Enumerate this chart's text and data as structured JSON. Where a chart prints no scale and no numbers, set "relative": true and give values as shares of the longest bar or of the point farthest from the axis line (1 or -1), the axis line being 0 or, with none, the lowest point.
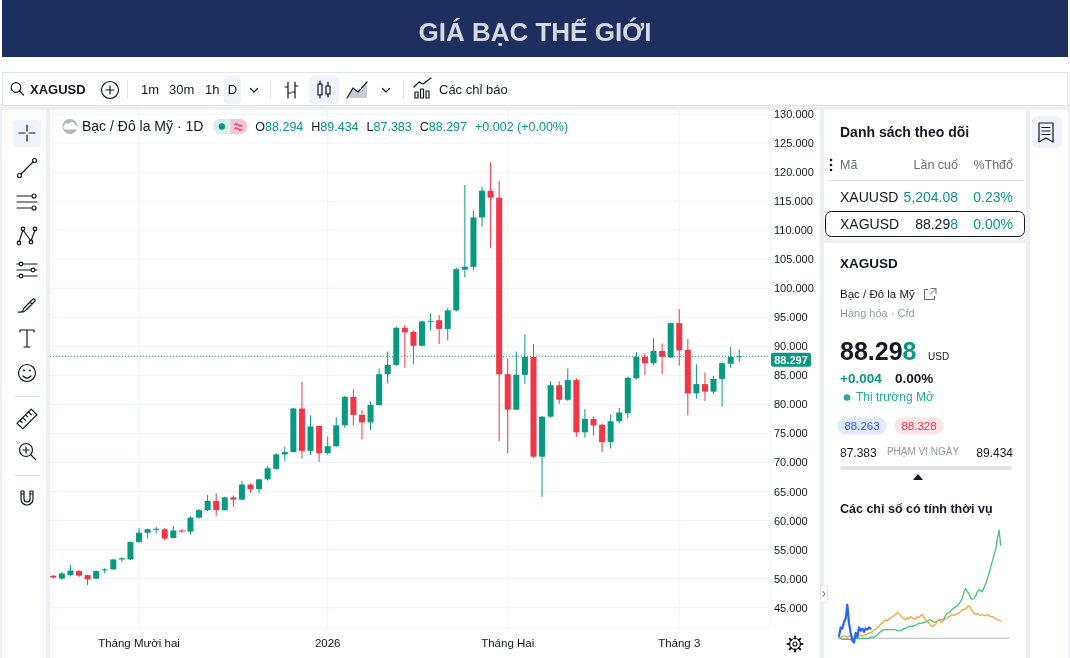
{
  "chart_data": [
    {
      "type": "candlestick",
      "title": "GIÁ BẠC THẾ GIỚI",
      "subtitle": "Bạc / Đô la Mỹ · 1D",
      "categories": [
        null,
        null,
        null,
        null,
        null,
        null,
        null,
        null,
        null,
        null,
        "Tháng Mười hai",
        null,
        null,
        null,
        null,
        null,
        null,
        null,
        null,
        null,
        null,
        null,
        null,
        null,
        null,
        null,
        null,
        null,
        null,
        null,
        null,
        null,
        "2026",
        null,
        null,
        null,
        null,
        null,
        null,
        null,
        null,
        null,
        null,
        null,
        null,
        null,
        null,
        null,
        null,
        null,
        null,
        null,
        null,
        "Tháng Hai",
        null,
        null,
        null,
        null,
        null,
        null,
        null,
        null,
        null,
        null,
        null,
        null,
        null,
        null,
        null,
        null,
        null,
        null,
        null,
        "Tháng 3",
        null,
        null,
        null,
        null,
        null,
        null,
        null
      ],
      "ohlc": [
        [
          50.5,
          50.6,
          50.0,
          50.2
        ],
        [
          50.0,
          51.1,
          49.8,
          50.9
        ],
        [
          50.6,
          52.4,
          50.4,
          51.4
        ],
        [
          51.3,
          51.5,
          50.3,
          50.5
        ],
        [
          50.6,
          50.7,
          48.9,
          49.9
        ],
        [
          50.0,
          51.4,
          49.9,
          51.3
        ],
        [
          51.5,
          51.8,
          50.9,
          51.6
        ],
        [
          51.6,
          53.4,
          51.5,
          53.3
        ],
        [
          53.3,
          53.7,
          52.9,
          53.5
        ],
        [
          53.3,
          56.4,
          53.2,
          56.3
        ],
        [
          56.3,
          58.7,
          56.2,
          57.9
        ],
        [
          57.9,
          58.6,
          56.9,
          58.5
        ],
        [
          58.4,
          58.9,
          57.8,
          58.6
        ],
        [
          58.5,
          58.7,
          56.6,
          56.9
        ],
        [
          57.0,
          59.1,
          56.9,
          58.3
        ],
        [
          58.3,
          58.5,
          57.9,
          58.1
        ],
        [
          58.1,
          60.8,
          57.6,
          60.5
        ],
        [
          60.5,
          62.0,
          60.3,
          61.8
        ],
        [
          61.8,
          64.4,
          61.6,
          63.4
        ],
        [
          63.4,
          64.7,
          60.8,
          61.8
        ],
        [
          61.8,
          64.1,
          61.7,
          64.0
        ],
        [
          64.0,
          64.3,
          62.4,
          63.6
        ],
        [
          63.6,
          66.8,
          63.5,
          66.2
        ],
        [
          66.2,
          66.4,
          64.8,
          65.4
        ],
        [
          65.4,
          67.2,
          64.7,
          67.1
        ],
        [
          67.1,
          69.4,
          66.9,
          69.0
        ],
        [
          68.9,
          71.6,
          68.7,
          71.4
        ],
        [
          71.4,
          72.7,
          70.3,
          71.8
        ],
        [
          71.8,
          79.4,
          71.7,
          79.3
        ],
        [
          79.3,
          83.9,
          70.7,
          72.0
        ],
        [
          72.0,
          78.1,
          71.3,
          76.2
        ],
        [
          76.3,
          76.4,
          70.1,
          71.6
        ],
        [
          71.6,
          74.5,
          71.4,
          72.8
        ],
        [
          72.8,
          77.8,
          72.7,
          76.4
        ],
        [
          76.4,
          81.5,
          76.0,
          81.3
        ],
        [
          81.3,
          82.6,
          76.4,
          78.2
        ],
        [
          78.2,
          79.0,
          74.0,
          76.9
        ],
        [
          76.9,
          80.5,
          75.6,
          79.9
        ],
        [
          79.9,
          86.2,
          79.8,
          85.2
        ],
        [
          85.2,
          89.1,
          83.6,
          86.8
        ],
        [
          86.8,
          93.4,
          86.6,
          93.2
        ],
        [
          93.2,
          93.7,
          86.3,
          92.4
        ],
        [
          92.5,
          92.7,
          86.9,
          90.1
        ],
        [
          90.1,
          94.4,
          90.0,
          94.3
        ],
        [
          94.3,
          95.7,
          92.7,
          94.4
        ],
        [
          94.5,
          95.4,
          90.4,
          93.0
        ],
        [
          93.0,
          96.6,
          91.0,
          96.2
        ],
        [
          96.2,
          103.5,
          96.0,
          103.3
        ],
        [
          103.2,
          117.8,
          101.9,
          103.7
        ],
        [
          103.7,
          113.3,
          103.1,
          112.2
        ],
        [
          112.2,
          117.5,
          110.6,
          116.8
        ],
        [
          116.8,
          121.7,
          106.9,
          115.6
        ],
        [
          115.6,
          118.5,
          73.7,
          85.2
        ],
        [
          85.2,
          87.9,
          71.6,
          79.1
        ],
        [
          79.1,
          89.1,
          79.0,
          85.1
        ],
        [
          85.1,
          92.1,
          83.5,
          88.2
        ],
        [
          88.2,
          90.4,
          70.8,
          71.0
        ],
        [
          71.0,
          78.0,
          64.1,
          77.9
        ],
        [
          77.9,
          84.0,
          77.7,
          83.3
        ],
        [
          83.3,
          84.0,
          80.1,
          80.8
        ],
        [
          80.8,
          86.2,
          80.6,
          84.2
        ],
        [
          84.2,
          84.5,
          74.4,
          75.2
        ],
        [
          75.2,
          79.2,
          74.3,
          77.5
        ],
        [
          77.5,
          77.8,
          74.7,
          76.4
        ],
        [
          76.5,
          76.7,
          71.8,
          73.5
        ],
        [
          73.5,
          78.3,
          72.4,
          77.1
        ],
        [
          77.1,
          79.4,
          76.7,
          78.6
        ],
        [
          78.5,
          84.7,
          77.6,
          84.6
        ],
        [
          84.5,
          89.0,
          84.3,
          88.2
        ],
        [
          88.2,
          88.8,
          85.1,
          87.1
        ],
        [
          87.1,
          91.4,
          86.8,
          89.2
        ],
        [
          89.2,
          90.5,
          85.2,
          88.2
        ],
        [
          88.1,
          94.1,
          88.0,
          94.0
        ],
        [
          94.0,
          96.4,
          86.7,
          89.3
        ],
        [
          89.4,
          91.3,
          78.1,
          81.9
        ],
        [
          81.9,
          86.9,
          81.0,
          83.5
        ],
        [
          83.5,
          85.5,
          80.6,
          82.2
        ],
        [
          82.2,
          84.9,
          81.8,
          84.4
        ],
        [
          84.4,
          87.2,
          79.6,
          87.1
        ],
        [
          87.0,
          89.9,
          86.3,
          88.2
        ],
        [
          88.294,
          89.434,
          87.383,
          88.297
        ]
      ],
      "ylim": [
        41.5,
        130.7
      ],
      "yticks": [
        {
          "value": 45,
          "label": "45.000"
        },
        {
          "value": 50,
          "label": "50.000"
        },
        {
          "value": 55,
          "label": "55.000"
        },
        {
          "value": 60,
          "label": "60.000"
        },
        {
          "value": 65,
          "label": "65.000"
        },
        {
          "value": 70,
          "label": "70.000"
        },
        {
          "value": 75,
          "label": "75.000"
        },
        {
          "value": 80,
          "label": "80.000"
        },
        {
          "value": 85,
          "label": "85.000"
        },
        {
          "value": 90,
          "label": "90.000"
        },
        {
          "value": 95,
          "label": "95.000"
        },
        {
          "value": 100,
          "label": "100.000"
        },
        {
          "value": 105,
          "label": "105.000"
        },
        {
          "value": 110,
          "label": "110.000"
        },
        {
          "value": 115,
          "label": "115.000"
        },
        {
          "value": 120,
          "label": "120.000"
        },
        {
          "value": 125,
          "label": "125.000"
        },
        {
          "value": 130,
          "label": "130.000"
        }
      ],
      "grid": true,
      "ref_lines": [
        {
          "axis": "y",
          "value": 88.297,
          "label": "88.297",
          "color": "#089981",
          "line_style": "dotted"
        }
      ],
      "annotations": [
        "O88.294",
        "H89.434",
        "L87.383",
        "C88.297",
        "+0.002 (+0.00%)"
      ]
    },
    {
      "type": "other",
      "annotations": [
        "XAGUSD",
        "1m",
        "30m",
        "1h",
        "D",
        "Các chỉ báo"
      ]
    },
    {
      "type": "other",
      "title": "Danh sách theo dõi",
      "annotations": [
        "Mã",
        "Lần cuố",
        "%Thđổ",
        "XAUUSD",
        "5,204.08",
        "0.23%",
        "XAGUSD",
        "88.298",
        "0.00%",
        "XAGUSD",
        "Bạc / Đô la Mỹ",
        "Hàng hóa · Cfd",
        "88.298",
        "USD",
        "+0.004",
        "0.00%",
        "Thị trường Mở",
        "88.263",
        "88.328",
        "87.383",
        "PHẠM VI NGÀY",
        "89.434"
      ]
    },
    {
      "type": "line",
      "title": "Các chỉ số có tính thời vụ",
      "relative": true,
      "categories": [
        null,
        null,
        null,
        null,
        null,
        null,
        null,
        null,
        null,
        null,
        null,
        null,
        null,
        null,
        null,
        null,
        null,
        null,
        null,
        null,
        null,
        null,
        null,
        null,
        null,
        null,
        null,
        null,
        null,
        null,
        null,
        null,
        null,
        null,
        null,
        null,
        null,
        null,
        null,
        null,
        null,
        null,
        null,
        null,
        null,
        null,
        null,
        null,
        null,
        null,
        null,
        null,
        null,
        null,
        null,
        null,
        null,
        null,
        null,
        null,
        null,
        null,
        null,
        null,
        null,
        null,
        null,
        null,
        null,
        null,
        null,
        null,
        null,
        null,
        null,
        null,
        null,
        null,
        null,
        null,
        null,
        null,
        null,
        null,
        null,
        null,
        null,
        null,
        null,
        null,
        null,
        null,
        null,
        null,
        null,
        null,
        null,
        null
      ],
      "series": [
        {
          "color": "#43c27a",
          "values": [
            0,
            0,
            -0.01,
            -0.01,
            -0.01,
            -0.01,
            -0.01,
            -0.01,
            -0.01,
            0,
            0,
            0,
            0,
            0,
            0,
            0,
            0,
            0,
            0,
            0.01,
            0.01,
            0.01,
            0.02,
            0.03,
            0.05,
            0.06,
            0.07,
            0.08,
            0.08,
            0.08,
            0.08,
            0.08,
            0.08,
            0.08,
            0.08,
            0.07,
            0.07,
            0.07,
            0.08,
            0.09,
            0.09,
            0.1,
            0.11,
            0.11,
            0.11,
            0.12,
            0.12,
            0.13,
            0.14,
            0.14,
            0.14,
            0.15,
            0.15,
            0.16,
            0.17,
            0.17,
            0.16,
            0.15,
            0.15,
            0.16,
            0.17,
            0.17,
            0.17,
            0.18,
            0.21,
            0.23,
            0.24,
            0.25,
            0.27,
            0.28,
            0.29,
            0.3,
            0.32,
            0.34,
            0.37,
            0.43,
            0.46,
            0.43,
            0.41,
            0.37,
            0.36,
            0.37,
            0.39,
            0.43,
            0.45,
            0.44,
            0.43,
            0.47,
            0.5,
            0.55,
            0.6,
            0.66,
            0.71,
            0.77,
            0.82,
            0.92,
            1.0,
            0.86
          ]
        },
        {
          "color": "#f5a43a",
          "values": [
            0.01,
            0.01,
            0.02,
            0.02,
            0.02,
            0.01,
            0.02,
            0.02,
            0.02,
            0.01,
            0.02,
            0.02,
            0.02,
            0.03,
            0.02,
            0.03,
            0.03,
            0.04,
            0.05,
            0.05,
            0.06,
            0.08,
            0.08,
            0.1,
            0.11,
            0.13,
            0.14,
            0.16,
            0.17,
            0.16,
            0.18,
            0.19,
            0.2,
            0.21,
            0.22,
            0.24,
            0.23,
            0.21,
            0.19,
            0.18,
            0.17,
            0.19,
            0.18,
            0.2,
            0.19,
            0.18,
            0.18,
            0.2,
            0.19,
            0.21,
            0.22,
            0.19,
            0.17,
            0.15,
            0.14,
            0.12,
            0.11,
            0.12,
            0.13,
            0.16,
            0.17,
            0.15,
            0.15,
            0.17,
            0.18,
            0.19,
            0.2,
            0.21,
            0.22,
            0.21,
            0.22,
            0.23,
            0.23,
            0.25,
            0.26,
            0.27,
            0.27,
            0.29,
            0.3,
            0.28,
            0.25,
            0.23,
            0.22,
            0.23,
            0.22,
            0.21,
            0.22,
            0.21,
            0.21,
            0.22,
            0.21,
            0.2,
            0.2,
            0.19,
            0.18,
            0.17,
            0.17,
            0.16
          ]
        },
        {
          "color": "#2962ff",
          "values": [
            0.02,
            0.1,
            0.09,
            0.15,
            0.18,
            0.31,
            0.14,
            0.05,
            -0.02,
            -0.04,
            0.05,
            0.01,
            0.1,
            0.07,
            0.09,
            0.06,
            0.09,
            0.08,
            0.1,
            0.09,
            null,
            null,
            null,
            null,
            null,
            null,
            null,
            null,
            null,
            null,
            null,
            null,
            null,
            null,
            null,
            null,
            null,
            null,
            null,
            null,
            null,
            null,
            null,
            null,
            null,
            null,
            null,
            null,
            null,
            null,
            null,
            null,
            null,
            null,
            null,
            null,
            null,
            null,
            null,
            null,
            null,
            null,
            null,
            null,
            null,
            null,
            null,
            null,
            null,
            null,
            null,
            null,
            null,
            null,
            null,
            null,
            null,
            null,
            null,
            null,
            null,
            null,
            null,
            null,
            null,
            null,
            null,
            null,
            null,
            null,
            null,
            null,
            null,
            null,
            null,
            null,
            null,
            null
          ]
        }
      ]
    }
  ]
}
